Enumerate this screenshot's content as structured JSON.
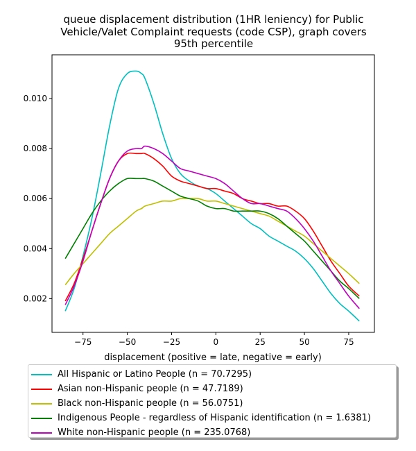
{
  "chart_data": {
    "type": "line",
    "title": "queue displacement distribution (1HR leniency) for Public\nVehicle/Valet Complaint  requests (code CSP), graph covers\n95th percentile",
    "xlabel": "displacement (positive = late, negative = early)",
    "ylabel": "",
    "xlim": [
      -92.5,
      89.5
    ],
    "ylim": [
      0.00065,
      0.01175
    ],
    "x_ticks": [
      -75,
      -50,
      -25,
      0,
      25,
      50,
      75
    ],
    "x_tick_labels": [
      "−75",
      "−50",
      "−25",
      "0",
      "25",
      "50",
      "75"
    ],
    "y_ticks": [
      0.002,
      0.004,
      0.006,
      0.008,
      0.01
    ],
    "y_tick_labels": [
      "0.002",
      "0.004",
      "0.006",
      "0.008",
      "0.010"
    ],
    "grid": false,
    "legend_position": "below",
    "x": [
      -85,
      -80,
      -75,
      -70,
      -65,
      -60,
      -55,
      -50,
      -45,
      -42,
      -40,
      -35,
      -30,
      -25,
      -20,
      -15,
      -10,
      -5,
      0,
      5,
      10,
      15,
      20,
      25,
      30,
      35,
      40,
      45,
      50,
      55,
      60,
      65,
      70,
      75,
      81
    ],
    "series": [
      {
        "name": "All Hispanic or Latino People (n = 70.7295)",
        "color": "#00bfbf",
        "values": [
          0.0015,
          0.0024,
          0.0037,
          0.0052,
          0.007,
          0.0089,
          0.0104,
          0.011,
          0.0111,
          0.011,
          0.0108,
          0.0098,
          0.0086,
          0.0076,
          0.007,
          0.0067,
          0.0065,
          0.0064,
          0.0062,
          0.0059,
          0.0056,
          0.0053,
          0.005,
          0.0048,
          0.0045,
          0.0043,
          0.0041,
          0.0039,
          0.0036,
          0.0032,
          0.0027,
          0.0022,
          0.0018,
          0.0015,
          0.0011
        ]
      },
      {
        "name": "Asian non-Hispanic people (n = 47.7189)",
        "color": "#ff0000",
        "values": [
          0.0019,
          0.0026,
          0.0036,
          0.0047,
          0.0058,
          0.0068,
          0.0075,
          0.0078,
          0.0078,
          0.0078,
          0.0078,
          0.0076,
          0.0073,
          0.0069,
          0.0067,
          0.0066,
          0.0065,
          0.0064,
          0.0064,
          0.0063,
          0.0062,
          0.006,
          0.0059,
          0.0058,
          0.0058,
          0.0057,
          0.0057,
          0.0055,
          0.0052,
          0.0047,
          0.0041,
          0.0035,
          0.003,
          0.0025,
          0.0021
        ]
      },
      {
        "name": "Black non-Hispanic people (n = 56.0751)",
        "color": "#bfbf00",
        "values": [
          0.00255,
          0.003,
          0.0034,
          0.0038,
          0.0042,
          0.0046,
          0.0049,
          0.0052,
          0.0055,
          0.0056,
          0.0057,
          0.0058,
          0.0059,
          0.0059,
          0.006,
          0.006,
          0.006,
          0.0059,
          0.0059,
          0.0058,
          0.0057,
          0.0056,
          0.0055,
          0.0054,
          0.0053,
          0.0051,
          0.0049,
          0.0047,
          0.0045,
          0.0042,
          0.0039,
          0.0036,
          0.0033,
          0.003,
          0.0026
        ]
      },
      {
        "name": "Indigenous People - regardless of Hispanic identification (n = 1.6381)",
        "color": "#008000",
        "values": [
          0.0036,
          0.0042,
          0.0048,
          0.0054,
          0.0059,
          0.0063,
          0.0066,
          0.0068,
          0.0068,
          0.0068,
          0.0068,
          0.0067,
          0.0065,
          0.0063,
          0.0061,
          0.006,
          0.0059,
          0.0057,
          0.0056,
          0.0056,
          0.0055,
          0.0055,
          0.0055,
          0.0055,
          0.0054,
          0.0052,
          0.0049,
          0.0046,
          0.0043,
          0.0039,
          0.0035,
          0.0031,
          0.0027,
          0.0024,
          0.002
        ]
      },
      {
        "name": "White non-Hispanic people (n = 235.0768)",
        "color": "#bf00bf",
        "values": [
          0.00175,
          0.0025,
          0.0035,
          0.0047,
          0.0058,
          0.0068,
          0.0075,
          0.0079,
          0.008,
          0.008,
          0.0081,
          0.008,
          0.0078,
          0.0075,
          0.0072,
          0.0071,
          0.007,
          0.0069,
          0.0068,
          0.0066,
          0.0063,
          0.006,
          0.0058,
          0.0058,
          0.0057,
          0.0056,
          0.0055,
          0.0052,
          0.0048,
          0.0043,
          0.0037,
          0.0031,
          0.0026,
          0.0021,
          0.0016
        ]
      }
    ]
  }
}
